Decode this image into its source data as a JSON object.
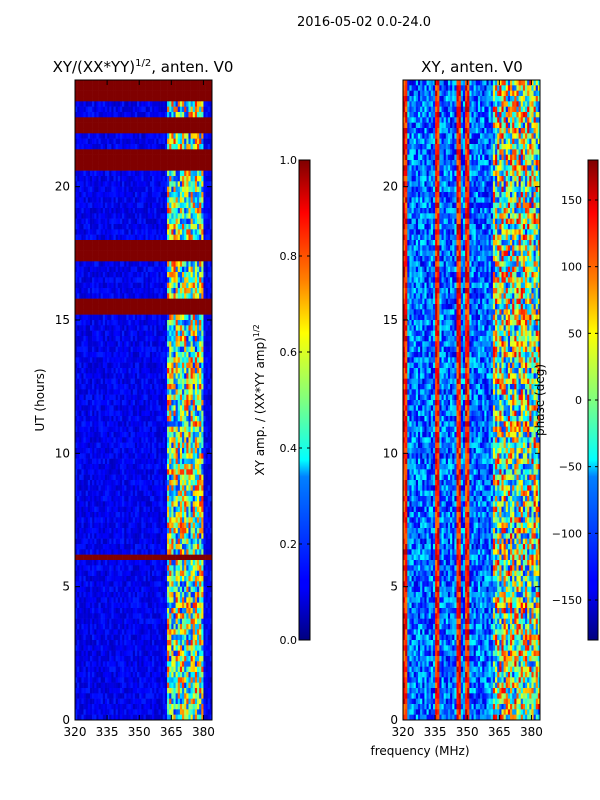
{
  "suptitle": "2016-05-02 0.0-24.0",
  "chart_data": [
    {
      "type": "heatmap",
      "title": "XY/(XX*YY)",
      "title_exponent": "1/2",
      "title_suffix": ", anten. V0",
      "xlabel": "",
      "ylabel": "UT (hours)",
      "xlim": [
        320,
        384
      ],
      "ylim": [
        0,
        24
      ],
      "xticks": [
        320,
        335,
        350,
        365,
        380
      ],
      "yticks": [
        0,
        5,
        10,
        15,
        20
      ],
      "kind": "amplitude",
      "saturated_bands_hours": [
        [
          23.3,
          24
        ],
        [
          22.1,
          22.5
        ],
        [
          20.6,
          21.3
        ],
        [
          17.2,
          17.9
        ],
        [
          15.2,
          15.7
        ],
        [
          6.0,
          6.15
        ]
      ],
      "active_band_mhz": [
        363,
        380
      ],
      "colorbar": {
        "label": "XY amp. / (XX*YY amp)",
        "label_exponent": "1/2",
        "range": [
          0.0,
          1.0
        ],
        "ticks": [
          "0.0",
          "0.2",
          "0.4",
          "0.6",
          "0.8",
          "1.0"
        ],
        "tick_values": [
          0.0,
          0.2,
          0.4,
          0.6,
          0.8,
          1.0
        ],
        "colormap": "jet"
      }
    },
    {
      "type": "heatmap",
      "title": "XY, anten. V0",
      "xlabel": "frequency (MHz)",
      "ylabel": "",
      "xlim": [
        320,
        384
      ],
      "ylim": [
        0,
        24
      ],
      "xticks": [
        320,
        335,
        350,
        365,
        380
      ],
      "yticks": [
        0,
        5,
        10,
        15,
        20
      ],
      "kind": "phase",
      "phase_stripes_mhz": [
        321,
        336,
        346,
        350
      ],
      "colorbar": {
        "label": "phase (deg)",
        "range": [
          -180,
          180
        ],
        "ticks": [
          "150",
          "100",
          "50",
          "0",
          "−50",
          "−100",
          "−150"
        ],
        "tick_values": [
          150,
          100,
          50,
          0,
          -50,
          -100,
          -150
        ],
        "colormap": "jet"
      }
    }
  ]
}
